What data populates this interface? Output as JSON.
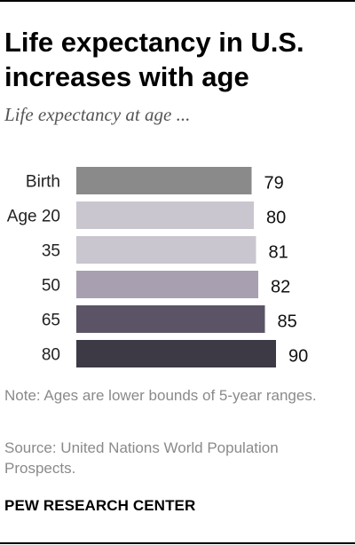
{
  "header": {
    "title": "Life expectancy in U.S. increases with age",
    "subtitle": "Life expectancy at age ..."
  },
  "chart_data": {
    "type": "bar",
    "orientation": "horizontal",
    "categories": [
      "Birth",
      "Age 20",
      "35",
      "50",
      "65",
      "80"
    ],
    "values": [
      79,
      80,
      81,
      82,
      85,
      90
    ],
    "value_labels": [
      "79",
      "80",
      "81",
      "82",
      "85",
      "90"
    ],
    "colors": [
      "#8a8a8a",
      "#c9c6cf",
      "#c9c6cf",
      "#a89fb0",
      "#5b5466",
      "#3d3a46"
    ],
    "title": "Life expectancy in U.S. increases with age",
    "subtitle": "Life expectancy at age ...",
    "xlabel": "",
    "ylabel": "",
    "grid": false,
    "legend": "none"
  },
  "footer": {
    "note": "Note: Ages are lower bounds of 5-year ranges.",
    "source": "Source: United Nations World Population Prospects.",
    "brand": "PEW RESEARCH CENTER"
  }
}
